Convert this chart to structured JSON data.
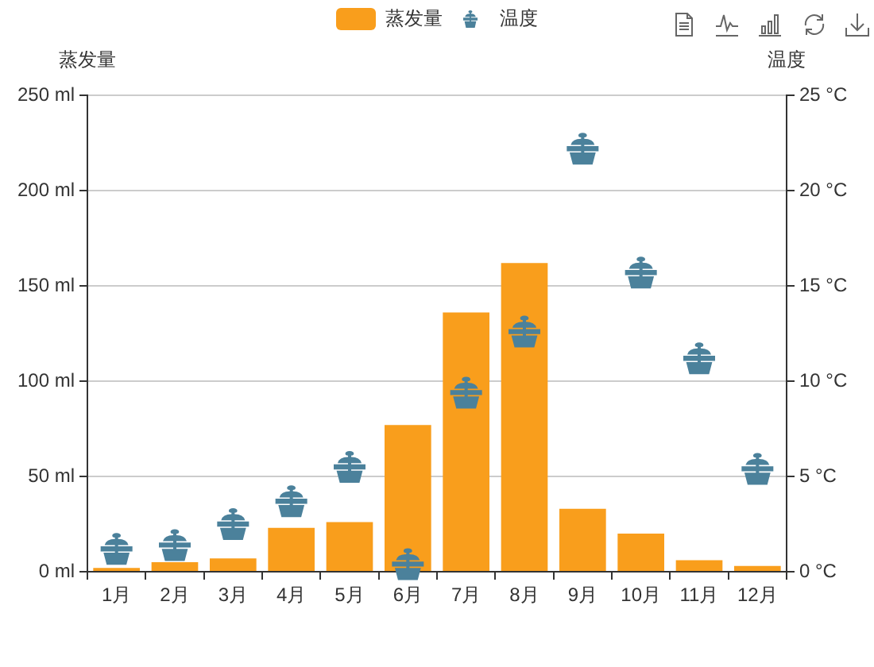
{
  "chart_data": {
    "type": "bar",
    "legend": "top",
    "grid": "y",
    "ylabel": "蒸发量",
    "y2label": "温度",
    "categories": [
      "1月",
      "2月",
      "3月",
      "4月",
      "5月",
      "6月",
      "7月",
      "8月",
      "9月",
      "10月",
      "11月",
      "12月"
    ],
    "ylim": [
      0,
      250
    ],
    "yticks": [
      {
        "value": 0,
        "label": "0 ml"
      },
      {
        "value": 50,
        "label": "50 ml"
      },
      {
        "value": 100,
        "label": "100 ml"
      },
      {
        "value": 150,
        "label": "150 ml"
      },
      {
        "value": 200,
        "label": "200 ml"
      },
      {
        "value": 250,
        "label": "250 ml"
      }
    ],
    "y2lim": [
      0,
      25
    ],
    "y2ticks": [
      {
        "value": 0,
        "label": "0 °C"
      },
      {
        "value": 5,
        "label": "5 °C"
      },
      {
        "value": 10,
        "label": "10 °C"
      },
      {
        "value": 15,
        "label": "15 °C"
      },
      {
        "value": 20,
        "label": "20 °C"
      },
      {
        "value": 25,
        "label": "25 °C"
      }
    ],
    "series": [
      {
        "name": "蒸发量",
        "color": "#f99e1c",
        "values": [
          2,
          5,
          7,
          23,
          26,
          77,
          136,
          162,
          33,
          20,
          6,
          3
        ]
      },
      {
        "name": "温度",
        "type": "scatter",
        "axis": "y2",
        "color": "#4b819b",
        "values": [
          1.2,
          1.4,
          2.5,
          3.7,
          5.5,
          0.4,
          9.4,
          12.6,
          22.2,
          15.7,
          11.2,
          5.4
        ]
      }
    ]
  }
}
